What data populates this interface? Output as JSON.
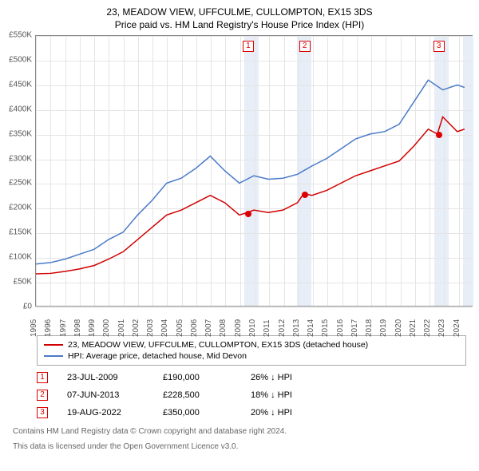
{
  "title": "23, MEADOW VIEW, UFFCULME, CULLOMPTON, EX15 3DS",
  "subtitle": "Price paid vs. HM Land Registry's House Price Index (HPI)",
  "chart": {
    "type": "line",
    "background_color": "#ffffff",
    "grid_color": "#e5e5e5",
    "border_color": "#888888",
    "y_axis": {
      "min": 0,
      "max": 550000,
      "step": 50000,
      "prefix": "£",
      "suffix": "K",
      "divisor": 1000
    },
    "x_axis": {
      "years": [
        1995,
        1996,
        1997,
        1998,
        1999,
        2000,
        2001,
        2002,
        2003,
        2004,
        2005,
        2006,
        2007,
        2008,
        2009,
        2010,
        2011,
        2012,
        2013,
        2014,
        2015,
        2016,
        2017,
        2018,
        2019,
        2020,
        2021,
        2022,
        2023,
        2024
      ]
    },
    "shaded_bands": [
      {
        "from": 2009.3,
        "to": 2010.3,
        "color": "#e8eef7"
      },
      {
        "from": 2012.9,
        "to": 2013.9,
        "color": "#e8eef7"
      },
      {
        "from": 2022.3,
        "to": 2023.3,
        "color": "#e8eef7"
      },
      {
        "from": 2024.3,
        "to": 2025,
        "color": "#e8eef7"
      }
    ],
    "series": [
      {
        "name": "property",
        "color": "#d00000",
        "width": 1.5,
        "data": [
          [
            1995,
            65000
          ],
          [
            1996,
            66000
          ],
          [
            1997,
            70000
          ],
          [
            1998,
            75000
          ],
          [
            1999,
            82000
          ],
          [
            2000,
            95000
          ],
          [
            2001,
            110000
          ],
          [
            2002,
            135000
          ],
          [
            2003,
            160000
          ],
          [
            2004,
            185000
          ],
          [
            2005,
            195000
          ],
          [
            2006,
            210000
          ],
          [
            2007,
            225000
          ],
          [
            2008,
            210000
          ],
          [
            2009,
            185000
          ],
          [
            2009.56,
            190000
          ],
          [
            2010,
            195000
          ],
          [
            2011,
            190000
          ],
          [
            2012,
            195000
          ],
          [
            2013,
            210000
          ],
          [
            2013.43,
            228500
          ],
          [
            2014,
            225000
          ],
          [
            2015,
            235000
          ],
          [
            2016,
            250000
          ],
          [
            2017,
            265000
          ],
          [
            2018,
            275000
          ],
          [
            2019,
            285000
          ],
          [
            2020,
            295000
          ],
          [
            2021,
            325000
          ],
          [
            2022,
            360000
          ],
          [
            2022.63,
            350000
          ],
          [
            2023,
            385000
          ],
          [
            2024,
            355000
          ],
          [
            2024.5,
            360000
          ]
        ]
      },
      {
        "name": "hpi",
        "color": "#4a7ac8",
        "width": 1.5,
        "data": [
          [
            1995,
            85000
          ],
          [
            1996,
            88000
          ],
          [
            1997,
            95000
          ],
          [
            1998,
            105000
          ],
          [
            1999,
            115000
          ],
          [
            2000,
            135000
          ],
          [
            2001,
            150000
          ],
          [
            2002,
            185000
          ],
          [
            2003,
            215000
          ],
          [
            2004,
            250000
          ],
          [
            2005,
            260000
          ],
          [
            2006,
            280000
          ],
          [
            2007,
            305000
          ],
          [
            2008,
            275000
          ],
          [
            2009,
            250000
          ],
          [
            2010,
            265000
          ],
          [
            2011,
            258000
          ],
          [
            2012,
            260000
          ],
          [
            2013,
            268000
          ],
          [
            2014,
            285000
          ],
          [
            2015,
            300000
          ],
          [
            2016,
            320000
          ],
          [
            2017,
            340000
          ],
          [
            2018,
            350000
          ],
          [
            2019,
            355000
          ],
          [
            2020,
            370000
          ],
          [
            2021,
            415000
          ],
          [
            2022,
            460000
          ],
          [
            2023,
            440000
          ],
          [
            2024,
            450000
          ],
          [
            2024.5,
            445000
          ]
        ]
      }
    ],
    "markers": [
      {
        "num": "1",
        "year": 2009.56,
        "price": 190000
      },
      {
        "num": "2",
        "year": 2013.43,
        "price": 228500
      },
      {
        "num": "3",
        "year": 2022.63,
        "price": 350000
      }
    ]
  },
  "legend": [
    {
      "color": "#d00000",
      "text": "23, MEADOW VIEW, UFFCULME, CULLOMPTON, EX15 3DS (detached house)"
    },
    {
      "color": "#4a7ac8",
      "text": "HPI: Average price, detached house, Mid Devon"
    }
  ],
  "events": [
    {
      "num": "1",
      "date": "23-JUL-2009",
      "price": "£190,000",
      "pct": "26% ↓ HPI"
    },
    {
      "num": "2",
      "date": "07-JUN-2013",
      "price": "£228,500",
      "pct": "18% ↓ HPI"
    },
    {
      "num": "3",
      "date": "19-AUG-2022",
      "price": "£350,000",
      "pct": "20% ↓ HPI"
    }
  ],
  "footer1": "Contains HM Land Registry data © Crown copyright and database right 2024.",
  "footer2": "This data is licensed under the Open Government Licence v3.0."
}
